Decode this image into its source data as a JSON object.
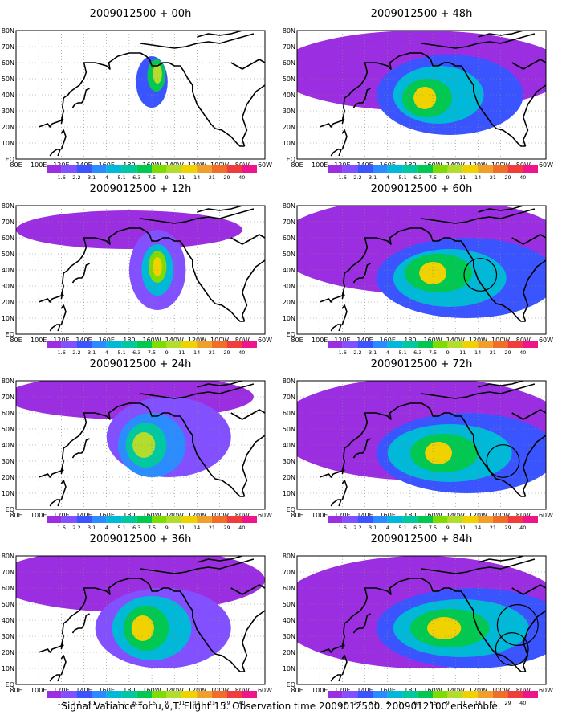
{
  "figure": {
    "caption": "Signal Variance for u,v,T. Flight 15. Observation time 2009012500. 2009012100 ensemble."
  },
  "colorbar": {
    "levels": [
      "1.6",
      "2.2",
      "3.1",
      "4",
      "5.1",
      "6.3",
      "7.5",
      "9",
      "11",
      "14",
      "21",
      "29",
      "40"
    ],
    "colors": [
      "#9b2ee0",
      "#8250ff",
      "#3a55ff",
      "#2b8cff",
      "#00b8d8",
      "#00c8a0",
      "#00c850",
      "#7fdc00",
      "#b4dc2d",
      "#f0d200",
      "#f0a028",
      "#f06e28",
      "#f03c3c",
      "#f0148c"
    ]
  },
  "axes": {
    "x_ticks": [
      "80E",
      "100E",
      "120E",
      "140E",
      "160E",
      "180",
      "160W",
      "140W",
      "120W",
      "100W",
      "80W",
      "60W"
    ],
    "y_ticks": [
      "EQ",
      "10N",
      "20N",
      "30N",
      "40N",
      "50N",
      "60N",
      "70N",
      "80N"
    ]
  },
  "chart_data": [
    {
      "type": "heatmap",
      "title": "2009012500 + 00h",
      "lead": "00h",
      "blobs": [
        {
          "lon": 200,
          "lat": 48,
          "rx": 14,
          "ry": 16,
          "level": 2
        },
        {
          "lon": 204,
          "lat": 52,
          "rx": 8,
          "ry": 10,
          "level": 6
        },
        {
          "lon": 205,
          "lat": 53,
          "rx": 4,
          "ry": 6,
          "level": 8
        }
      ],
      "circles": []
    },
    {
      "type": "heatmap",
      "title": "2009012500 + 12h",
      "lead": "12h",
      "blobs": [
        {
          "lon": 180,
          "lat": 65,
          "rx": 100,
          "ry": 12,
          "level": 0
        },
        {
          "lon": 205,
          "lat": 40,
          "rx": 25,
          "ry": 25,
          "level": 1
        },
        {
          "lon": 205,
          "lat": 40,
          "rx": 14,
          "ry": 16,
          "level": 4
        },
        {
          "lon": 205,
          "lat": 42,
          "rx": 8,
          "ry": 10,
          "level": 7
        },
        {
          "lon": 205,
          "lat": 42,
          "rx": 4,
          "ry": 6,
          "level": 9
        }
      ],
      "circles": []
    },
    {
      "type": "heatmap",
      "title": "2009012500 + 24h",
      "lead": "24h",
      "blobs": [
        {
          "lon": 180,
          "lat": 70,
          "rx": 110,
          "ry": 14,
          "level": 0
        },
        {
          "lon": 215,
          "lat": 45,
          "rx": 55,
          "ry": 25,
          "level": 1
        },
        {
          "lon": 200,
          "lat": 40,
          "rx": 30,
          "ry": 20,
          "level": 3
        },
        {
          "lon": 195,
          "lat": 40,
          "rx": 18,
          "ry": 14,
          "level": 5
        },
        {
          "lon": 193,
          "lat": 40,
          "rx": 10,
          "ry": 8,
          "level": 8
        }
      ],
      "circles": []
    },
    {
      "type": "heatmap",
      "title": "2009012500 + 36h",
      "lead": "36h",
      "blobs": [
        {
          "lon": 180,
          "lat": 65,
          "rx": 120,
          "ry": 20,
          "level": 0
        },
        {
          "lon": 210,
          "lat": 35,
          "rx": 60,
          "ry": 25,
          "level": 1
        },
        {
          "lon": 200,
          "lat": 35,
          "rx": 35,
          "ry": 20,
          "level": 4
        },
        {
          "lon": 195,
          "lat": 35,
          "rx": 20,
          "ry": 14,
          "level": 6
        },
        {
          "lon": 192,
          "lat": 35,
          "rx": 10,
          "ry": 8,
          "level": 9
        }
      ],
      "circles": []
    },
    {
      "type": "heatmap",
      "title": "2009012500 + 48h",
      "lead": "48h",
      "blobs": [
        {
          "lon": 190,
          "lat": 55,
          "rx": 130,
          "ry": 25,
          "level": 0
        },
        {
          "lon": 215,
          "lat": 40,
          "rx": 65,
          "ry": 25,
          "level": 2
        },
        {
          "lon": 205,
          "lat": 40,
          "rx": 40,
          "ry": 18,
          "level": 4
        },
        {
          "lon": 195,
          "lat": 38,
          "rx": 22,
          "ry": 12,
          "level": 6
        },
        {
          "lon": 193,
          "lat": 38,
          "rx": 10,
          "ry": 7,
          "level": 9
        }
      ],
      "circles": []
    },
    {
      "type": "heatmap",
      "title": "2009012500 + 60h",
      "lead": "60h",
      "blobs": [
        {
          "lon": 190,
          "lat": 55,
          "rx": 130,
          "ry": 30,
          "level": 0
        },
        {
          "lon": 230,
          "lat": 35,
          "rx": 80,
          "ry": 25,
          "level": 2
        },
        {
          "lon": 215,
          "lat": 35,
          "rx": 50,
          "ry": 18,
          "level": 4
        },
        {
          "lon": 205,
          "lat": 38,
          "rx": 30,
          "ry": 12,
          "level": 6
        },
        {
          "lon": 200,
          "lat": 38,
          "rx": 12,
          "ry": 7,
          "level": 9
        }
      ],
      "circles": [
        {
          "lon": 242,
          "lat": 37,
          "r": 8
        }
      ]
    },
    {
      "type": "heatmap",
      "title": "2009012500 + 72h",
      "lead": "72h",
      "blobs": [
        {
          "lon": 190,
          "lat": 50,
          "rx": 130,
          "ry": 32,
          "level": 0
        },
        {
          "lon": 230,
          "lat": 35,
          "rx": 80,
          "ry": 25,
          "level": 2
        },
        {
          "lon": 215,
          "lat": 35,
          "rx": 55,
          "ry": 18,
          "level": 4
        },
        {
          "lon": 210,
          "lat": 35,
          "rx": 30,
          "ry": 12,
          "level": 6
        },
        {
          "lon": 205,
          "lat": 35,
          "rx": 12,
          "ry": 7,
          "level": 9
        }
      ],
      "circles": [
        {
          "lon": 262,
          "lat": 30,
          "r": 8
        }
      ]
    },
    {
      "type": "heatmap",
      "title": "2009012500 + 84h",
      "lead": "84h",
      "blobs": [
        {
          "lon": 190,
          "lat": 45,
          "rx": 130,
          "ry": 35,
          "level": 0
        },
        {
          "lon": 235,
          "lat": 35,
          "rx": 85,
          "ry": 25,
          "level": 2
        },
        {
          "lon": 225,
          "lat": 35,
          "rx": 60,
          "ry": 18,
          "level": 4
        },
        {
          "lon": 215,
          "lat": 35,
          "rx": 35,
          "ry": 12,
          "level": 6
        },
        {
          "lon": 210,
          "lat": 35,
          "rx": 15,
          "ry": 7,
          "level": 9
        }
      ],
      "circles": [
        {
          "lon": 275,
          "lat": 37,
          "r": 10
        },
        {
          "lon": 270,
          "lat": 22,
          "r": 8
        }
      ]
    }
  ]
}
